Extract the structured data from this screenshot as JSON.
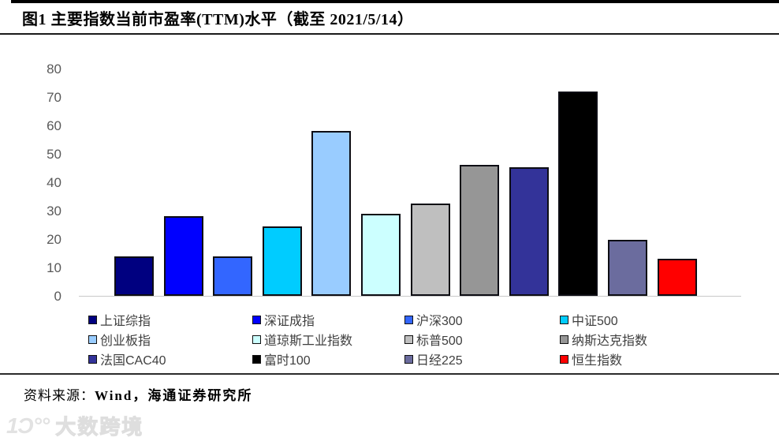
{
  "header": {
    "title": "图1  主要指数当前市盈率(TTM)水平（截至 2021/5/14）"
  },
  "chart_data": {
    "type": "bar",
    "title": "主要指数当前市盈率(TTM)水平（截至 2021/5/14）",
    "categories": [
      "上证综指",
      "深证成指",
      "沪深300",
      "中证500",
      "创业板指",
      "道琼斯工业指数",
      "标普500",
      "纳斯达克指数",
      "法国CAC40",
      "富时100",
      "日经225",
      "恒生指数"
    ],
    "values": [
      14,
      28,
      14,
      24.5,
      58,
      29,
      32.5,
      46,
      45.3,
      72,
      19.6,
      13
    ],
    "colors": [
      "#000080",
      "#0000FF",
      "#3366FF",
      "#00CCFF",
      "#99CCFF",
      "#CCFFFF",
      "#BFBFBF",
      "#969696",
      "#333399",
      "#000000",
      "#6B6C9E",
      "#FF0000"
    ],
    "xlabel": "",
    "ylabel": "",
    "ylim": [
      0,
      80
    ],
    "yticks": [
      0,
      10,
      20,
      30,
      40,
      50,
      60,
      70,
      80
    ],
    "grid": false,
    "legend_position": "bottom",
    "legend_columns": 4
  },
  "footer": {
    "source_label": "资料来源：",
    "source_value": "Wind，海通证券研究所"
  },
  "watermark": {
    "logo": "1Ͻ°°",
    "text": "大数跨境"
  }
}
